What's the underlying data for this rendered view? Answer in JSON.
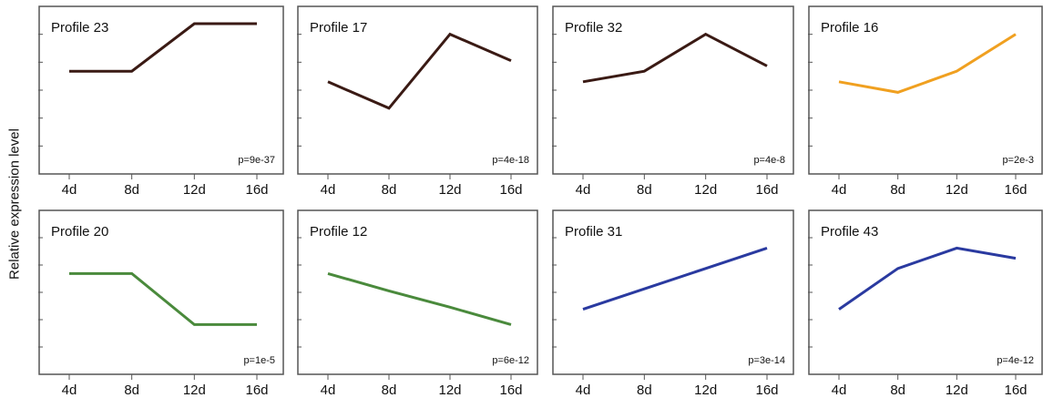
{
  "figure": {
    "ylabel": "Relative expression level"
  },
  "chart_data": [
    {
      "type": "line",
      "title": "Profile 23",
      "p_value": "p=9e-37",
      "color": "#3a1a14",
      "x": [
        "4d",
        "8d",
        "12d",
        "16d"
      ],
      "series": [
        {
          "values": [
            0.55,
            0.55,
            1.0,
            1.0
          ]
        }
      ]
    },
    {
      "type": "line",
      "title": "Profile 17",
      "p_value": "p=4e-18",
      "color": "#3a1a14",
      "x": [
        "4d",
        "8d",
        "12d",
        "16d"
      ],
      "series": [
        {
          "values": [
            0.45,
            0.2,
            0.9,
            0.65
          ]
        }
      ]
    },
    {
      "type": "line",
      "title": "Profile 32",
      "p_value": "p=4e-8",
      "color": "#3a1a14",
      "x": [
        "4d",
        "8d",
        "12d",
        "16d"
      ],
      "series": [
        {
          "values": [
            0.45,
            0.55,
            0.9,
            0.6
          ]
        }
      ]
    },
    {
      "type": "line",
      "title": "Profile 16",
      "p_value": "p=2e-3",
      "color": "#f0a020",
      "x": [
        "4d",
        "8d",
        "12d",
        "16d"
      ],
      "series": [
        {
          "values": [
            0.45,
            0.35,
            0.55,
            0.9
          ]
        }
      ]
    },
    {
      "type": "line",
      "title": "Profile 20",
      "p_value": "p=1e-5",
      "color": "#4a8a3c",
      "x": [
        "4d",
        "8d",
        "12d",
        "16d"
      ],
      "series": [
        {
          "values": [
            0.55,
            0.55,
            0.05,
            0.05
          ]
        }
      ]
    },
    {
      "type": "line",
      "title": "Profile 12",
      "p_value": "p=6e-12",
      "color": "#4a8a3c",
      "x": [
        "4d",
        "8d",
        "12d",
        "16d"
      ],
      "series": [
        {
          "values": [
            0.55,
            0.38,
            0.22,
            0.05
          ]
        }
      ]
    },
    {
      "type": "line",
      "title": "Profile 31",
      "p_value": "p=3e-14",
      "color": "#2a3aa0",
      "x": [
        "4d",
        "8d",
        "12d",
        "16d"
      ],
      "series": [
        {
          "values": [
            0.2,
            0.4,
            0.6,
            0.8
          ]
        }
      ]
    },
    {
      "type": "line",
      "title": "Profile 43",
      "p_value": "p=4e-12",
      "color": "#2a3aa0",
      "x": [
        "4d",
        "8d",
        "12d",
        "16d"
      ],
      "series": [
        {
          "values": [
            0.2,
            0.6,
            0.8,
            0.7
          ]
        }
      ]
    }
  ]
}
